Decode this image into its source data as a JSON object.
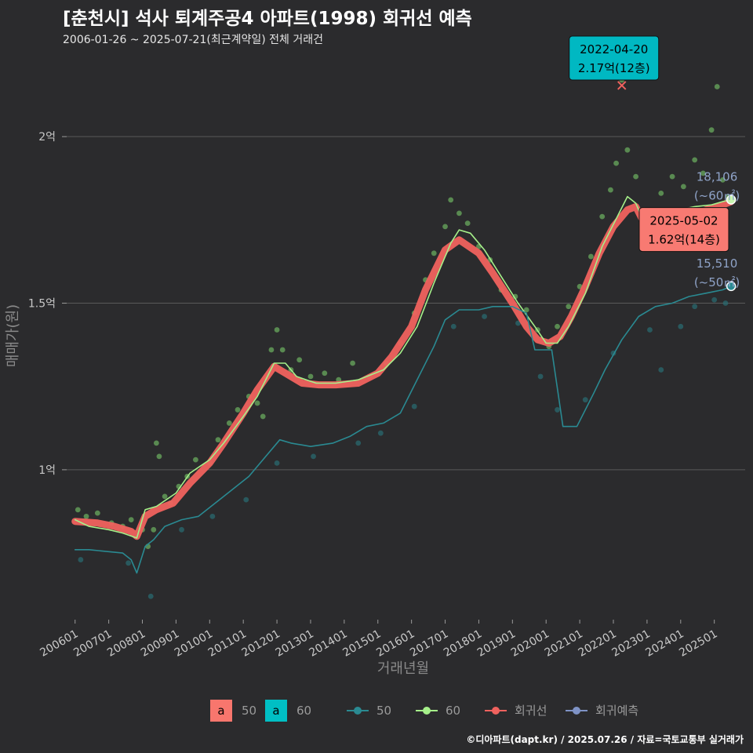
{
  "title": "[춘천시] 석사 퇴계주공4 아파트(1998) 회귀선 예측",
  "subtitle": "2006-01-26 ~ 2025-07-21(최근계약일) 전체 거래건",
  "caption": "©디아파트(dapt.kr) / 2025.07.26 / 자료=국토교통부 실거래가",
  "colors": {
    "background": "#2b2b2d",
    "series_50": "#2a8a92",
    "series_60": "#a6f08a",
    "points_60": "#7fd870",
    "points_50": "#2a6e74",
    "regression": "#f0625e",
    "prediction": "#7f93c6",
    "grid": "#5a5a5a",
    "label_high_fill": "#00b8c2",
    "label_recent_fill": "#f87a72"
  },
  "chart_data": {
    "type": "line",
    "xlabel": "거래년월",
    "ylabel": "매매가(원)",
    "x_range": [
      "2005-10",
      "2025-12"
    ],
    "ylim": [
      5500,
      22500
    ],
    "y_ticks": [
      {
        "value": 10000,
        "label": "1억"
      },
      {
        "value": 15000,
        "label": "1.5억"
      },
      {
        "value": 20000,
        "label": "2억"
      }
    ],
    "x_ticks": [
      "200601",
      "200701",
      "200801",
      "200901",
      "201001",
      "201101",
      "201201",
      "201301",
      "201401",
      "201501",
      "201601",
      "201701",
      "201801",
      "201901",
      "202001",
      "202101",
      "202201",
      "202301",
      "202401",
      "202501"
    ],
    "series": [
      {
        "name": "50",
        "points": [
          [
            "2006-01",
            7600
          ],
          [
            "2006-06",
            7600
          ],
          [
            "2007-06",
            7500
          ],
          [
            "2007-09",
            7300
          ],
          [
            "2007-11",
            6900
          ],
          [
            "2008-02",
            7700
          ],
          [
            "2008-05",
            7900
          ],
          [
            "2008-09",
            8300
          ],
          [
            "2009-03",
            8500
          ],
          [
            "2009-09",
            8600
          ],
          [
            "2010-03",
            9000
          ],
          [
            "2010-09",
            9400
          ],
          [
            "2011-03",
            9800
          ],
          [
            "2011-09",
            10400
          ],
          [
            "2012-02",
            10900
          ],
          [
            "2012-06",
            10800
          ],
          [
            "2013-01",
            10700
          ],
          [
            "2013-09",
            10800
          ],
          [
            "2014-03",
            11000
          ],
          [
            "2014-09",
            11300
          ],
          [
            "2015-03",
            11400
          ],
          [
            "2015-09",
            11700
          ],
          [
            "2016-03",
            12700
          ],
          [
            "2016-09",
            13700
          ],
          [
            "2017-01",
            14500
          ],
          [
            "2017-06",
            14800
          ],
          [
            "2018-01",
            14800
          ],
          [
            "2018-06",
            14900
          ],
          [
            "2019-01",
            14900
          ],
          [
            "2019-06",
            14700
          ],
          [
            "2019-09",
            13600
          ],
          [
            "2020-03",
            13600
          ],
          [
            "2020-07",
            11300
          ],
          [
            "2020-12",
            11300
          ],
          [
            "2021-06",
            12300
          ],
          [
            "2021-10",
            13000
          ],
          [
            "2022-04",
            13900
          ],
          [
            "2022-10",
            14600
          ],
          [
            "2023-04",
            14900
          ],
          [
            "2023-10",
            15000
          ],
          [
            "2024-04",
            15200
          ],
          [
            "2024-10",
            15300
          ],
          [
            "2025-04",
            15400
          ],
          [
            "2025-07",
            15510
          ]
        ]
      },
      {
        "name": "60",
        "points": [
          [
            "2006-01",
            8500
          ],
          [
            "2006-06",
            8300
          ],
          [
            "2007-01",
            8200
          ],
          [
            "2007-06",
            8100
          ],
          [
            "2007-11",
            7950
          ],
          [
            "2008-02",
            8800
          ],
          [
            "2008-06",
            8900
          ],
          [
            "2009-01",
            9300
          ],
          [
            "2009-06",
            9900
          ],
          [
            "2010-01",
            10300
          ],
          [
            "2010-06",
            10800
          ],
          [
            "2011-01",
            11600
          ],
          [
            "2011-06",
            12200
          ],
          [
            "2011-12",
            13200
          ],
          [
            "2012-04",
            13200
          ],
          [
            "2012-08",
            12800
          ],
          [
            "2013-03",
            12600
          ],
          [
            "2013-10",
            12600
          ],
          [
            "2014-06",
            12700
          ],
          [
            "2015-03",
            13000
          ],
          [
            "2015-09",
            13500
          ],
          [
            "2016-03",
            14300
          ],
          [
            "2016-09",
            15600
          ],
          [
            "2017-03",
            16800
          ],
          [
            "2017-06",
            17200
          ],
          [
            "2017-10",
            17100
          ],
          [
            "2018-03",
            16600
          ],
          [
            "2018-09",
            15800
          ],
          [
            "2019-03",
            15000
          ],
          [
            "2019-09",
            14300
          ],
          [
            "2020-01",
            13800
          ],
          [
            "2020-05",
            13800
          ],
          [
            "2020-09",
            14300
          ],
          [
            "2021-03",
            15300
          ],
          [
            "2021-09",
            16700
          ],
          [
            "2022-03",
            17700
          ],
          [
            "2022-06",
            18200
          ],
          [
            "2022-09",
            18000
          ],
          [
            "2022-12",
            17400
          ],
          [
            "2023-02",
            17500
          ],
          [
            "2023-06",
            17600
          ],
          [
            "2023-12",
            17800
          ],
          [
            "2024-06",
            17900
          ],
          [
            "2024-12",
            17950
          ],
          [
            "2025-04",
            18050
          ],
          [
            "2025-07",
            18106
          ]
        ]
      },
      {
        "name": "회귀선",
        "points": [
          [
            "2006-01",
            8450
          ],
          [
            "2006-09",
            8400
          ],
          [
            "2007-03",
            8300
          ],
          [
            "2007-09",
            8150
          ],
          [
            "2007-11",
            8000
          ],
          [
            "2008-02",
            8600
          ],
          [
            "2008-06",
            8800
          ],
          [
            "2008-12",
            9000
          ],
          [
            "2009-06",
            9600
          ],
          [
            "2010-01",
            10200
          ],
          [
            "2010-06",
            10800
          ],
          [
            "2011-01",
            11700
          ],
          [
            "2011-06",
            12400
          ],
          [
            "2011-12",
            13100
          ],
          [
            "2012-04",
            12900
          ],
          [
            "2012-10",
            12600
          ],
          [
            "2013-04",
            12550
          ],
          [
            "2013-10",
            12550
          ],
          [
            "2014-06",
            12600
          ],
          [
            "2015-01",
            12900
          ],
          [
            "2015-06",
            13400
          ],
          [
            "2016-01",
            14300
          ],
          [
            "2016-06",
            15400
          ],
          [
            "2017-01",
            16600
          ],
          [
            "2017-06",
            16900
          ],
          [
            "2018-01",
            16500
          ],
          [
            "2018-06",
            15900
          ],
          [
            "2019-01",
            15000
          ],
          [
            "2019-06",
            14300
          ],
          [
            "2019-10",
            13900
          ],
          [
            "2020-02",
            13800
          ],
          [
            "2020-06",
            14000
          ],
          [
            "2020-10",
            14600
          ],
          [
            "2021-03",
            15500
          ],
          [
            "2021-08",
            16500
          ],
          [
            "2022-01",
            17300
          ],
          [
            "2022-06",
            17800
          ],
          [
            "2022-09",
            17900
          ],
          [
            "2022-12",
            17400
          ],
          [
            "2023-04",
            17300
          ],
          [
            "2023-10",
            17400
          ],
          [
            "2024-04",
            17600
          ],
          [
            "2024-10",
            17800
          ],
          [
            "2025-04",
            17950
          ],
          [
            "2025-07",
            18050
          ]
        ]
      }
    ],
    "points": {
      "note": "개별 거래건 (series 60 / 50)",
      "s60": [
        [
          "2006-02",
          8800
        ],
        [
          "2006-05",
          8600
        ],
        [
          "2006-09",
          8700
        ],
        [
          "2007-02",
          8400
        ],
        [
          "2007-06",
          8300
        ],
        [
          "2007-09",
          8500
        ],
        [
          "2008-01",
          8200
        ],
        [
          "2008-03",
          7700
        ],
        [
          "2008-05",
          8200
        ],
        [
          "2008-06",
          10800
        ],
        [
          "2008-07",
          10400
        ],
        [
          "2008-09",
          9200
        ],
        [
          "2008-11",
          9000
        ],
        [
          "2009-02",
          9500
        ],
        [
          "2009-05",
          9800
        ],
        [
          "2009-08",
          10300
        ],
        [
          "2010-01",
          10200
        ],
        [
          "2010-04",
          10900
        ],
        [
          "2010-08",
          11400
        ],
        [
          "2010-11",
          11800
        ],
        [
          "2011-03",
          12200
        ],
        [
          "2011-06",
          12000
        ],
        [
          "2011-08",
          11600
        ],
        [
          "2011-11",
          13600
        ],
        [
          "2012-01",
          14200
        ],
        [
          "2012-03",
          13600
        ],
        [
          "2012-06",
          13000
        ],
        [
          "2012-09",
          13300
        ],
        [
          "2013-01",
          12800
        ],
        [
          "2013-06",
          12900
        ],
        [
          "2013-11",
          12700
        ],
        [
          "2014-04",
          13200
        ],
        [
          "2014-10",
          12800
        ],
        [
          "2015-04",
          13200
        ],
        [
          "2015-09",
          13800
        ],
        [
          "2016-02",
          14700
        ],
        [
          "2016-06",
          15700
        ],
        [
          "2016-09",
          16500
        ],
        [
          "2017-01",
          17300
        ],
        [
          "2017-03",
          18100
        ],
        [
          "2017-06",
          17700
        ],
        [
          "2017-09",
          17400
        ],
        [
          "2018-01",
          16700
        ],
        [
          "2018-05",
          16300
        ],
        [
          "2018-09",
          15400
        ],
        [
          "2019-02",
          15200
        ],
        [
          "2019-06",
          14800
        ],
        [
          "2019-10",
          14200
        ],
        [
          "2020-02",
          13700
        ],
        [
          "2020-05",
          14300
        ],
        [
          "2020-09",
          14900
        ],
        [
          "2021-01",
          15500
        ],
        [
          "2021-05",
          16400
        ],
        [
          "2021-09",
          17600
        ],
        [
          "2021-12",
          18400
        ],
        [
          "2022-02",
          19200
        ],
        [
          "2022-04",
          21700
        ],
        [
          "2022-06",
          19600
        ],
        [
          "2022-09",
          18800
        ],
        [
          "2022-12",
          17800
        ],
        [
          "2023-03",
          17600
        ],
        [
          "2023-06",
          18300
        ],
        [
          "2023-10",
          18800
        ],
        [
          "2024-02",
          18500
        ],
        [
          "2024-06",
          19300
        ],
        [
          "2024-09",
          18900
        ],
        [
          "2024-12",
          20200
        ],
        [
          "2025-02",
          21500
        ],
        [
          "2025-04",
          18700
        ],
        [
          "2025-06",
          18200
        ]
      ],
      "s50": [
        [
          "2006-03",
          7300
        ],
        [
          "2007-08",
          7200
        ],
        [
          "2008-04",
          6200
        ],
        [
          "2009-03",
          8200
        ],
        [
          "2010-02",
          8600
        ],
        [
          "2011-02",
          9100
        ],
        [
          "2012-01",
          10200
        ],
        [
          "2013-02",
          10400
        ],
        [
          "2014-06",
          10800
        ],
        [
          "2015-02",
          11100
        ],
        [
          "2016-02",
          11900
        ],
        [
          "2017-04",
          14300
        ],
        [
          "2018-03",
          14600
        ],
        [
          "2019-03",
          14400
        ],
        [
          "2019-11",
          12800
        ],
        [
          "2020-05",
          11800
        ],
        [
          "2021-03",
          12100
        ],
        [
          "2022-01",
          13500
        ],
        [
          "2023-02",
          14200
        ],
        [
          "2023-06",
          13000
        ],
        [
          "2024-01",
          14300
        ],
        [
          "2024-06",
          14900
        ],
        [
          "2025-01",
          15100
        ],
        [
          "2025-05",
          15000
        ]
      ]
    },
    "annotations": [
      {
        "date_label": "2022-04-20",
        "value_label": "2.17억(12층)",
        "x": "2022-04",
        "y": 21700,
        "style": "high"
      },
      {
        "date_label": "2025-05-02",
        "value_label": "1.62억(14층)",
        "x": "2025-05",
        "y": 16200,
        "style": "recent"
      }
    ],
    "end_labels": [
      {
        "value": "18,106",
        "area": "(~60㎡)",
        "y": 18106
      },
      {
        "value": "15,510",
        "area": "(~50㎡)",
        "y": 15510
      }
    ],
    "legend": {
      "position": "bottom",
      "fill_items": [
        {
          "key": "a",
          "label": "50",
          "color": "#f8766d"
        },
        {
          "key": "a",
          "label": "60",
          "color": "#00bfc4"
        }
      ],
      "line_items": [
        {
          "label": "50",
          "color": "#2a8a92"
        },
        {
          "label": "60",
          "color": "#a6f08a"
        },
        {
          "label": "회귀선",
          "color": "#f0625e"
        },
        {
          "label": "회귀예측",
          "color": "#7f93c6"
        }
      ]
    }
  }
}
